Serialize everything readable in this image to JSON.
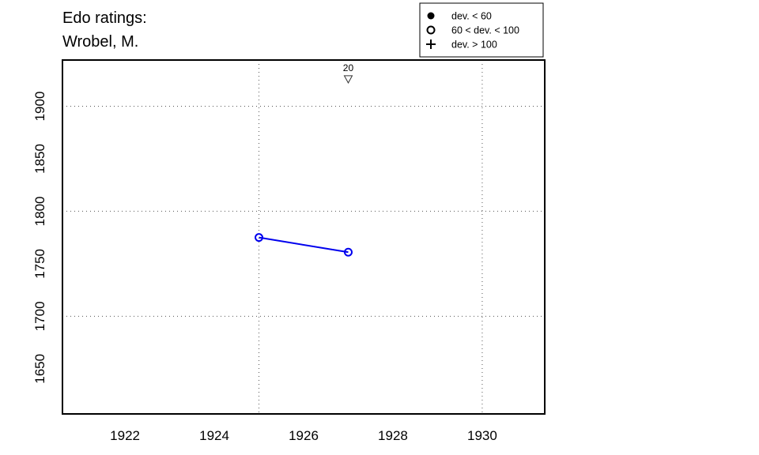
{
  "chart_data": {
    "type": "line",
    "title": [
      "Edo ratings:",
      "Wrobel, M."
    ],
    "xlabel": "",
    "ylabel": "",
    "xlim": [
      1920.6,
      1931.4
    ],
    "ylim": [
      1607,
      1944
    ],
    "x_ticks": [
      1922,
      1924,
      1926,
      1928,
      1930
    ],
    "y_ticks": [
      1650,
      1700,
      1750,
      1800,
      1850,
      1900
    ],
    "x_grid": [
      1925,
      1930
    ],
    "y_grid": [
      1700,
      1800,
      1900
    ],
    "grid": "dotted",
    "series": [
      {
        "color": "#0000ee",
        "marker": "open-circle",
        "points": [
          {
            "x": 1925,
            "y": 1775
          },
          {
            "x": 1927,
            "y": 1761
          }
        ]
      }
    ],
    "annotations": [
      {
        "x": 1927,
        "y": 1926,
        "marker": "down-triangle",
        "label": "20"
      }
    ],
    "legend": {
      "placement": "top-right",
      "entries": [
        {
          "marker": "filled-circle",
          "label": "dev. < 60"
        },
        {
          "marker": "open-circle",
          "label": "60 < dev. < 100"
        },
        {
          "marker": "plus",
          "label": "dev. > 100"
        }
      ]
    }
  }
}
